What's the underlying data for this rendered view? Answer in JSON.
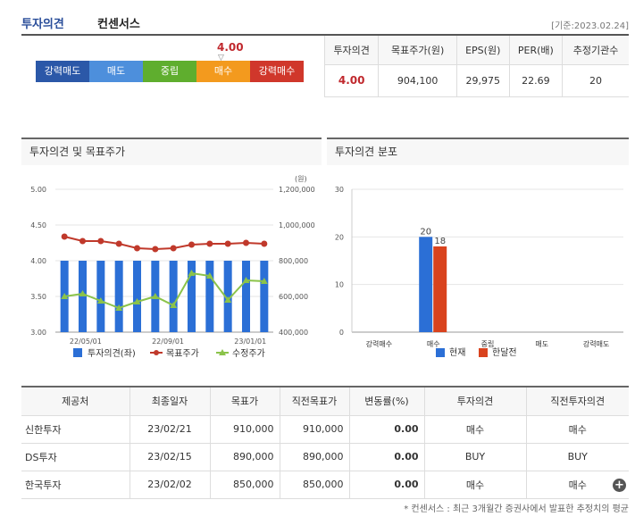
{
  "header": {
    "title_a": "투자의견",
    "title_b": "컨센서스",
    "date": "[기준:2023.02.24]"
  },
  "gauge": {
    "score": "4.00",
    "marker": "▽",
    "buttons": [
      {
        "label": "강력매도",
        "color": "#2b58a8"
      },
      {
        "label": "매도",
        "color": "#4d8fdc"
      },
      {
        "label": "중립",
        "color": "#5fae2e"
      },
      {
        "label": "매수",
        "color": "#f39a1e"
      },
      {
        "label": "강력매수",
        "color": "#d0372b"
      }
    ]
  },
  "summary": {
    "headers": [
      "투자의견",
      "목표주가(원)",
      "EPS(원)",
      "PER(배)",
      "추정기관수"
    ],
    "values": [
      "4.00",
      "904,100",
      "29,975",
      "22.69",
      "20"
    ]
  },
  "left_panel": {
    "title": "투자의견 및 목표주가"
  },
  "right_panel": {
    "title": "투자의견 분포"
  },
  "chart_data": [
    {
      "type": "bar+line",
      "title": "투자의견 및 목표주가",
      "y_left": {
        "ticks": [
          "5.00",
          "4.50",
          "4.00",
          "3.50",
          "3.00"
        ],
        "range": [
          3.0,
          5.0
        ]
      },
      "y_right": {
        "unit": "(원)",
        "ticks": [
          "1,200,000",
          "1,000,000",
          "800,000",
          "600,000",
          "400,000"
        ],
        "range": [
          400000,
          1200000
        ]
      },
      "x_ticks": [
        "22/05/01",
        "22/09/01",
        "23/01/01"
      ],
      "series": [
        {
          "name": "투자의견(좌)",
          "type": "bar",
          "axis": "left",
          "color": "#2b6fd6",
          "values": [
            4.0,
            4.0,
            4.0,
            4.0,
            4.0,
            4.0,
            4.0,
            4.0,
            4.0,
            4.0,
            4.0,
            4.0
          ]
        },
        {
          "name": "목표주가",
          "type": "line",
          "axis": "right",
          "color": "#c0392b",
          "values": [
            935000,
            910000,
            910000,
            895000,
            870000,
            865000,
            870000,
            890000,
            895000,
            895000,
            900000,
            895000
          ]
        },
        {
          "name": "수정주가",
          "type": "line",
          "axis": "right",
          "color": "#8bc34a",
          "values": [
            600000,
            615000,
            575000,
            535000,
            570000,
            600000,
            550000,
            730000,
            715000,
            580000,
            690000,
            685000
          ]
        }
      ]
    },
    {
      "type": "bar",
      "title": "투자의견 분포",
      "categories": [
        "강력매수",
        "매수",
        "중립",
        "매도",
        "강력매도"
      ],
      "ylim": [
        0,
        30
      ],
      "y_ticks": [
        "30",
        "20",
        "10",
        "0"
      ],
      "series": [
        {
          "name": "현재",
          "color": "#2b6fd6",
          "values": [
            0,
            20,
            0,
            0,
            0
          ]
        },
        {
          "name": "한달전",
          "color": "#d9431e",
          "values": [
            0,
            18,
            0,
            0,
            0
          ]
        }
      ]
    }
  ],
  "brokers": {
    "headers": [
      "제공처",
      "최종일자",
      "목표가",
      "직전목표가",
      "변동률(%)",
      "투자의견",
      "직전투자의견"
    ],
    "rows": [
      [
        "신한투자",
        "23/02/21",
        "910,000",
        "910,000",
        "0.00",
        "매수",
        "매수"
      ],
      [
        "DS투자",
        "23/02/15",
        "890,000",
        "890,000",
        "0.00",
        "BUY",
        "BUY"
      ],
      [
        "한국투자",
        "23/02/02",
        "850,000",
        "850,000",
        "0.00",
        "매수",
        "매수"
      ]
    ],
    "plus": "+"
  },
  "footnote": "* 컨센서스 : 최근 3개월간 증권사에서 발표한 추정치의 평균"
}
